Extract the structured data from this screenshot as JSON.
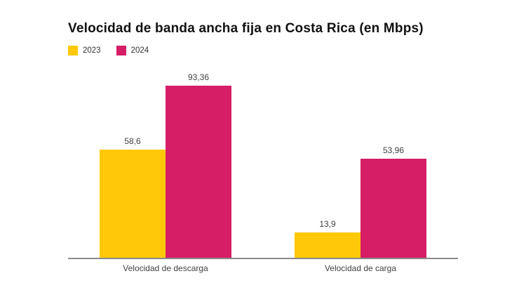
{
  "title": "Velocidad de banda ancha fija en Costa Rica (en Mbps)",
  "colors": {
    "series_2023": "#FFC90A",
    "series_2024": "#D61E66",
    "axis_line": "#8a8a8a",
    "label_text": "#424242",
    "title_text": "#111111",
    "background": "#ffffff"
  },
  "chart_data": {
    "type": "bar",
    "title": "Velocidad de banda ancha fija en Costa Rica (en Mbps)",
    "categories": [
      "Velocidad de descarga",
      "Velocidad de carga"
    ],
    "series": [
      {
        "name": "2023",
        "color": "#FFC90A",
        "values": [
          58.6,
          13.9
        ],
        "labels": [
          "58,6",
          "13,9"
        ]
      },
      {
        "name": "2024",
        "color": "#D61E66",
        "values": [
          93.36,
          53.96
        ],
        "labels": [
          "93,36",
          "53,96"
        ]
      }
    ],
    "unit": "Mbps",
    "xlabel": "",
    "ylabel": "",
    "ylim": [
      0,
      100
    ],
    "grid": false,
    "y_axis_visible": false,
    "value_labels": true,
    "legend_position": "top-left"
  }
}
